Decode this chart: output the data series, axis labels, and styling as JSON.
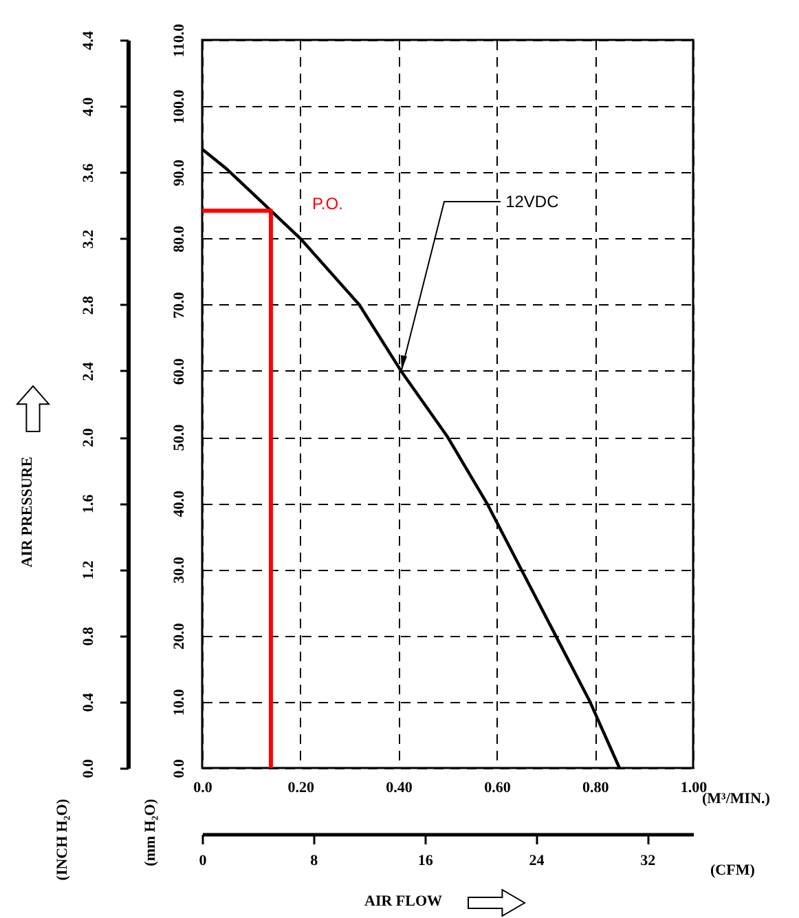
{
  "chart_data": {
    "type": "line",
    "xlabel": "(M³/MIN.)",
    "x2label": "(CFM)",
    "ylabel": "(mm H₂O)",
    "y2label": "(INCH H₂O)",
    "annotations": [
      "AIR PRESSURE",
      "AIR FLOW",
      {
        "text": "P.O.",
        "x": 0.14,
        "y": 84.2
      },
      {
        "text": "12VDC",
        "x": 0.405,
        "y": 60
      }
    ],
    "series": [
      {
        "color": "#000000",
        "x": [
          0,
          0.05,
          0.1,
          0.14,
          0.2,
          0.32,
          0.405,
          0.5,
          0.58,
          0.65,
          0.72,
          0.79,
          0.85
        ],
        "values": [
          93.5,
          90.5,
          87,
          84.2,
          80,
          70,
          60,
          50,
          40,
          30,
          20,
          10,
          0
        ]
      },
      {
        "color": "#ff0000",
        "x": [
          0,
          0.14,
          0.14
        ],
        "values": [
          84.2,
          84.2,
          0
        ]
      }
    ],
    "xlim": [
      0,
      1
    ],
    "xticks": [
      {
        "value": 0,
        "label": "0.0"
      },
      {
        "value": 0.2,
        "label": "0.20"
      },
      {
        "value": 0.4,
        "label": "0.40"
      },
      {
        "value": 0.6,
        "label": "0.60"
      },
      {
        "value": 0.8,
        "label": "0.80"
      },
      {
        "value": 1,
        "label": "1.00"
      }
    ],
    "x2lim": [
      0,
      35.3
    ],
    "x2ticks": [
      0,
      8,
      16,
      24,
      32
    ],
    "ylim": [
      0,
      110
    ],
    "yticks": [
      {
        "value": 0,
        "label": "0.0"
      },
      {
        "value": 10,
        "label": "10.0"
      },
      {
        "value": 20,
        "label": "20.0"
      },
      {
        "value": 30,
        "label": "30.0"
      },
      {
        "value": 40,
        "label": "40.0"
      },
      {
        "value": 50,
        "label": "50.0"
      },
      {
        "value": 60,
        "label": "60.0"
      },
      {
        "value": 70,
        "label": "70.0"
      },
      {
        "value": 80,
        "label": "80.0"
      },
      {
        "value": 90,
        "label": "90.0"
      },
      {
        "value": 100,
        "label": "100.0"
      },
      {
        "value": 110,
        "label": "110.0"
      }
    ],
    "y2lim": [
      0,
      4.4
    ],
    "y2ticks": [
      {
        "value": 0,
        "label": "0.0"
      },
      0.4,
      0.8,
      1.2,
      1.6,
      {
        "value": 2,
        "label": "2.0"
      },
      2.4,
      2.8,
      3.2,
      3.6,
      {
        "value": 4,
        "label": "4.0"
      },
      4.4
    ],
    "grid": true,
    "marker": "none",
    "line_style": "solid"
  }
}
